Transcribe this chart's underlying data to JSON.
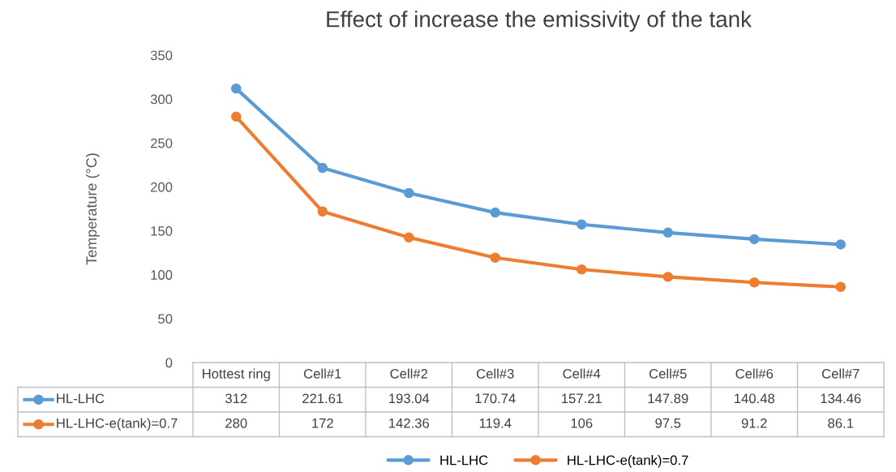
{
  "chart_data": {
    "type": "line",
    "title": "Effect of increase the emissivity of the tank",
    "ylabel": "Temperature (°C)",
    "categories": [
      "Hottest ring",
      "Cell#1",
      "Cell#2",
      "Cell#3",
      "Cell#4",
      "Cell#5",
      "Cell#6",
      "Cell#7"
    ],
    "series": [
      {
        "name": "HL-LHC",
        "color": "#5b9bd5",
        "values": [
          312,
          221.61,
          193.04,
          170.74,
          157.21,
          147.89,
          140.48,
          134.46
        ]
      },
      {
        "name": "HL-LHC-e(tank)=0.7",
        "color": "#ed7d31",
        "values": [
          280,
          172,
          142.36,
          119.4,
          106,
          97.5,
          91.2,
          86.1
        ]
      }
    ],
    "ylim": [
      0,
      350
    ],
    "yticks": [
      0,
      50,
      100,
      150,
      200,
      250,
      300,
      350
    ],
    "data_labels": true,
    "legend": "bottom",
    "marker": "circle",
    "line_style": "solid",
    "grid": false
  }
}
